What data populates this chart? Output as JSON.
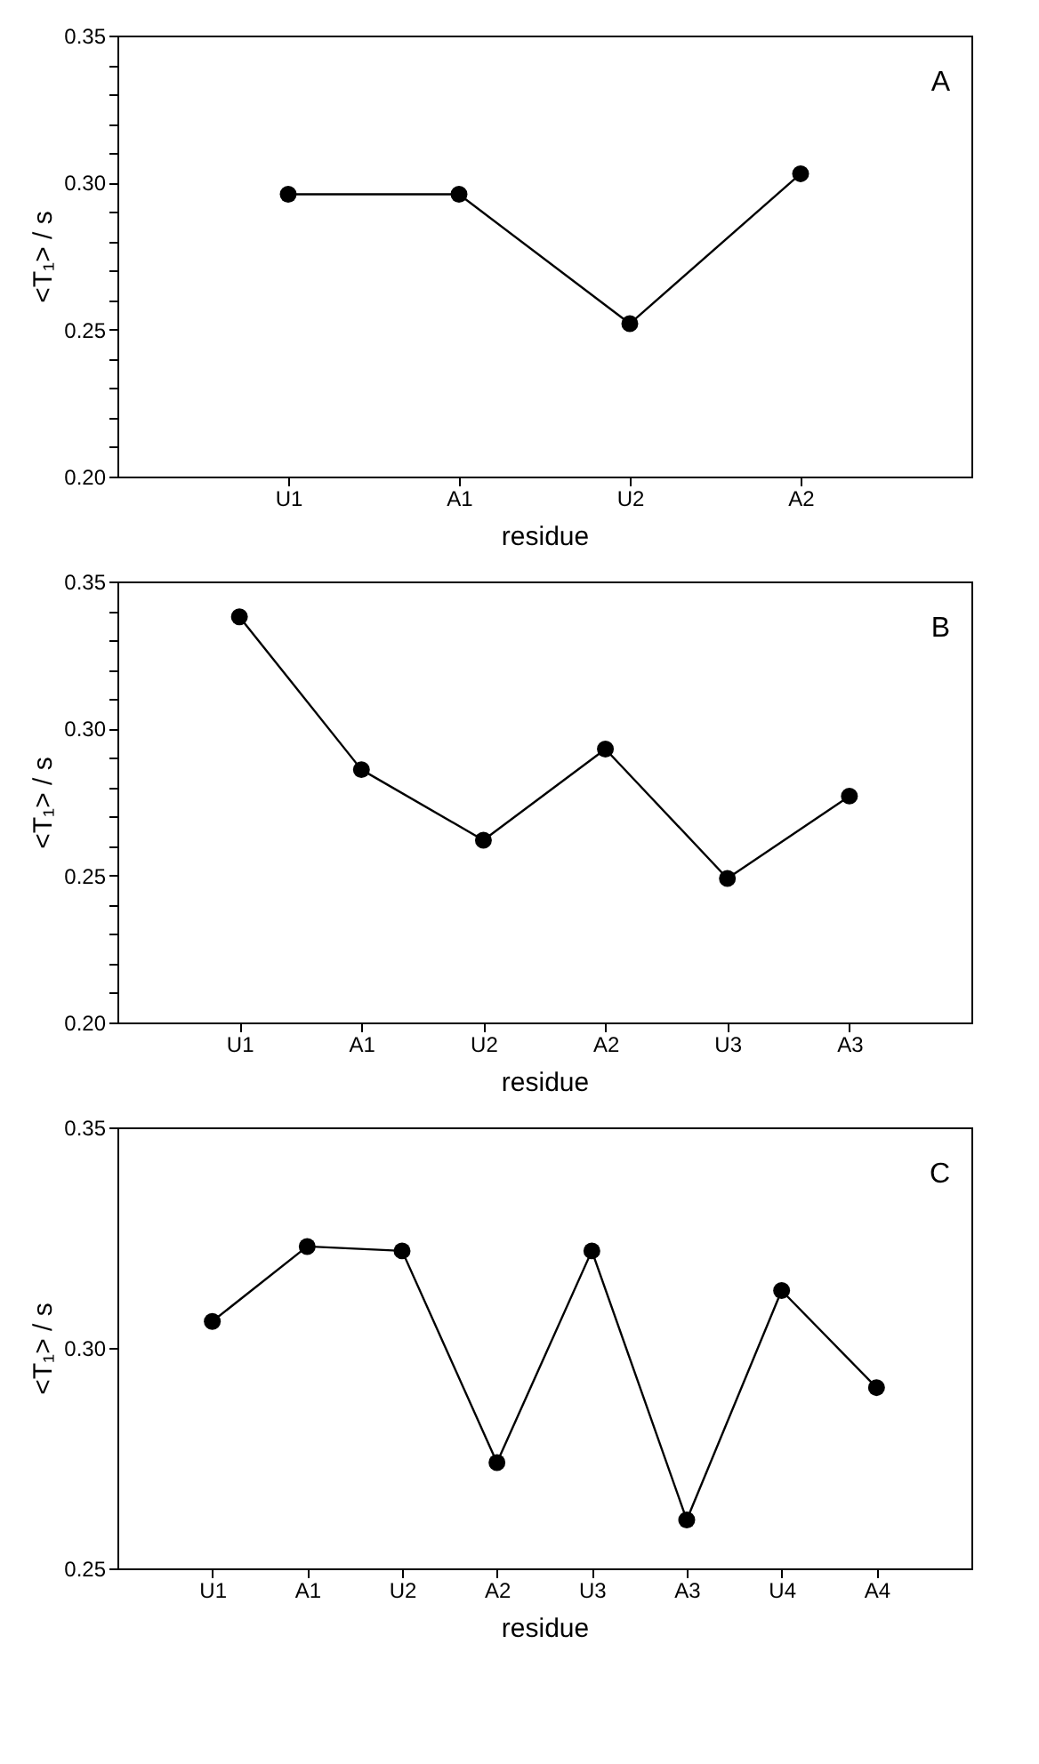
{
  "chart_data": [
    {
      "type": "line",
      "categories": [
        "U1",
        "A1",
        "U2",
        "A2"
      ],
      "xlabel": "residue",
      "ylabel": "<T₁> / s",
      "annotations": [
        "A"
      ],
      "series": [
        {
          "color": "#000000",
          "values": [
            0.296,
            0.296,
            0.252,
            0.303
          ]
        }
      ],
      "ylim": [
        0.2,
        0.35
      ],
      "yticks": [
        {
          "value": 0.2,
          "label": "0.20"
        },
        {
          "value": 0.21,
          "label": null
        },
        {
          "value": 0.22,
          "label": null
        },
        {
          "value": 0.23,
          "label": null
        },
        {
          "value": 0.24,
          "label": null
        },
        {
          "value": 0.25,
          "label": "0.25"
        },
        {
          "value": 0.26,
          "label": null
        },
        {
          "value": 0.27,
          "label": null
        },
        {
          "value": 0.28,
          "label": null
        },
        {
          "value": 0.29,
          "label": null
        },
        {
          "value": 0.3,
          "label": "0.30"
        },
        {
          "value": 0.31,
          "label": null
        },
        {
          "value": 0.32,
          "label": null
        },
        {
          "value": 0.33,
          "label": null
        },
        {
          "value": 0.34,
          "label": null
        },
        {
          "value": 0.35,
          "label": "0.35"
        }
      ],
      "marker": "circle",
      "line_style": "solid",
      "grid": false
    },
    {
      "type": "line",
      "categories": [
        "U1",
        "A1",
        "U2",
        "A2",
        "U3",
        "A3"
      ],
      "xlabel": "residue",
      "ylabel": "<T₁> / s",
      "annotations": [
        "B"
      ],
      "series": [
        {
          "color": "#000000",
          "values": [
            0.338,
            0.286,
            0.262,
            0.293,
            0.249,
            0.277
          ]
        }
      ],
      "ylim": [
        0.2,
        0.35
      ],
      "yticks": [
        {
          "value": 0.2,
          "label": "0.20"
        },
        {
          "value": 0.21,
          "label": null
        },
        {
          "value": 0.22,
          "label": null
        },
        {
          "value": 0.23,
          "label": null
        },
        {
          "value": 0.24,
          "label": null
        },
        {
          "value": 0.25,
          "label": "0.25"
        },
        {
          "value": 0.26,
          "label": null
        },
        {
          "value": 0.27,
          "label": null
        },
        {
          "value": 0.28,
          "label": null
        },
        {
          "value": 0.29,
          "label": null
        },
        {
          "value": 0.3,
          "label": "0.30"
        },
        {
          "value": 0.31,
          "label": null
        },
        {
          "value": 0.32,
          "label": null
        },
        {
          "value": 0.33,
          "label": null
        },
        {
          "value": 0.34,
          "label": null
        },
        {
          "value": 0.35,
          "label": "0.35"
        }
      ],
      "marker": "circle",
      "line_style": "solid",
      "grid": false
    },
    {
      "type": "line",
      "categories": [
        "U1",
        "A1",
        "U2",
        "A2",
        "U3",
        "A3",
        "U4",
        "A4"
      ],
      "xlabel": "residue",
      "ylabel": "<T₁> / s",
      "annotations": [
        "C"
      ],
      "series": [
        {
          "color": "#000000",
          "values": [
            0.306,
            0.323,
            0.322,
            0.274,
            0.322,
            0.261,
            0.313,
            0.291
          ]
        }
      ],
      "ylim": [
        0.25,
        0.35
      ],
      "yticks": [
        {
          "value": 0.25,
          "label": "0.25"
        },
        {
          "value": 0.3,
          "label": "0.30"
        },
        {
          "value": 0.35,
          "label": "0.35"
        }
      ],
      "marker": "circle",
      "line_style": "solid",
      "grid": false
    }
  ]
}
